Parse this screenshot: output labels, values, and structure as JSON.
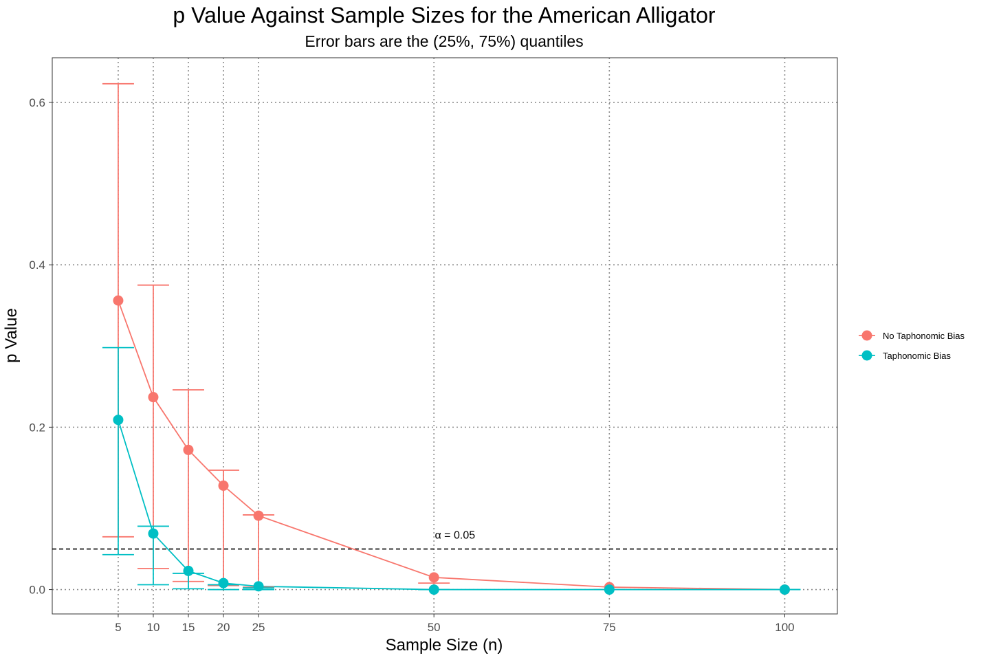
{
  "chart_data": {
    "type": "line",
    "title": "p Value Against Sample Sizes for the American Alligator",
    "subtitle": "Error bars are the (25%, 75%) quantiles",
    "xlabel": "Sample Size (n)",
    "ylabel": "p Value",
    "xlim": [
      -4.4,
      107.5
    ],
    "ylim": [
      -0.03,
      0.655
    ],
    "x_ticks": [
      5,
      10,
      15,
      20,
      25,
      50,
      75,
      100
    ],
    "y_ticks": [
      0.0,
      0.2,
      0.4,
      0.6
    ],
    "y_tick_labels": [
      "0.0",
      "0.2",
      "0.4",
      "0.6"
    ],
    "grid": "dotted",
    "legend_position": "right",
    "x": [
      5,
      10,
      15,
      20,
      25,
      50,
      75,
      100
    ],
    "series": [
      {
        "name": "No Taphonomic Bias",
        "color": "#F8766D",
        "values": [
          0.356,
          0.237,
          0.172,
          0.128,
          0.091,
          0.015,
          0.003,
          0.0
        ],
        "q25": [
          0.065,
          0.026,
          0.01,
          0.005,
          0.003,
          0.0,
          0.0,
          0.0
        ],
        "q75": [
          0.623,
          0.375,
          0.246,
          0.147,
          0.092,
          0.008,
          0.0,
          0.0
        ]
      },
      {
        "name": "Taphonomic Bias",
        "color": "#00BFC4",
        "values": [
          0.209,
          0.069,
          0.023,
          0.008,
          0.004,
          0.0,
          0.0,
          0.0
        ],
        "q25": [
          0.043,
          0.006,
          0.001,
          0.0,
          0.0,
          0.0,
          0.0,
          0.0
        ],
        "q75": [
          0.298,
          0.078,
          0.02,
          0.006,
          0.002,
          0.0,
          0.0,
          0.0
        ]
      }
    ],
    "reference_line": {
      "y": 0.05,
      "style": "dashed",
      "label": "α = 0.05",
      "label_x": 53
    }
  }
}
